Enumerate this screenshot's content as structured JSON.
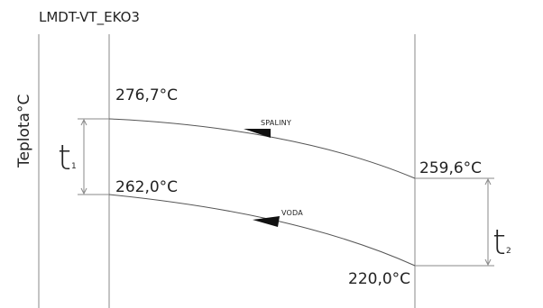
{
  "diagram": {
    "title": "LMDT-VT_EKO3",
    "y_axis_label": "Teplota°C",
    "flue_gas": {
      "label": "SPALINY",
      "inlet_temp": "276,7°C",
      "outlet_temp": "259,6°C"
    },
    "water": {
      "label": "VODA",
      "outlet_temp": "262,0°C",
      "inlet_temp": "220,0°C"
    },
    "delta_left": {
      "symbol": "t",
      "subscript": "1"
    },
    "delta_right": {
      "symbol": "t",
      "subscript": "2"
    },
    "colors": {
      "line": "#8a8a8a",
      "curve": "#555555",
      "arrow": "#111111",
      "text": "#222222"
    }
  }
}
